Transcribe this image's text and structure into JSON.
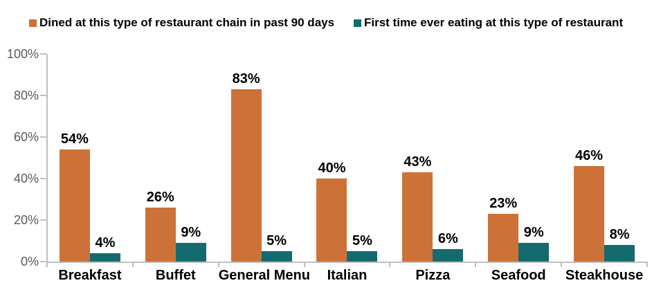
{
  "colors": {
    "dined": "#cc7238",
    "first_time": "#156a70",
    "axis": "#bfbfbf",
    "ytick_label": "#595959",
    "value_label": "#000000"
  },
  "legend": {
    "items": [
      {
        "label": "Dined at this type of restaurant chain in past 90 days",
        "color_key": "dined"
      },
      {
        "label": "First time ever eating at this type of restaurant",
        "color_key": "first_time"
      }
    ]
  },
  "chart_data": {
    "type": "bar",
    "title": "",
    "xlabel": "",
    "ylabel": "",
    "categories": [
      "Breakfast",
      "Buffet",
      "General Menu",
      "Italian",
      "Pizza",
      "Seafood",
      "Steakhouse"
    ],
    "series": [
      {
        "name": "Dined at this type of restaurant chain in past 90 days",
        "color_key": "dined",
        "values": [
          54,
          26,
          83,
          40,
          43,
          23,
          46
        ]
      },
      {
        "name": "First time ever eating at this type of restaurant",
        "color_key": "first_time",
        "values": [
          4,
          9,
          5,
          5,
          6,
          9,
          8
        ]
      }
    ],
    "value_suffix": "%",
    "ylim": [
      0,
      100
    ],
    "yticks": [
      0,
      20,
      40,
      60,
      80,
      100
    ],
    "ytick_suffix": "%",
    "grid": false,
    "legend_position": "top"
  }
}
